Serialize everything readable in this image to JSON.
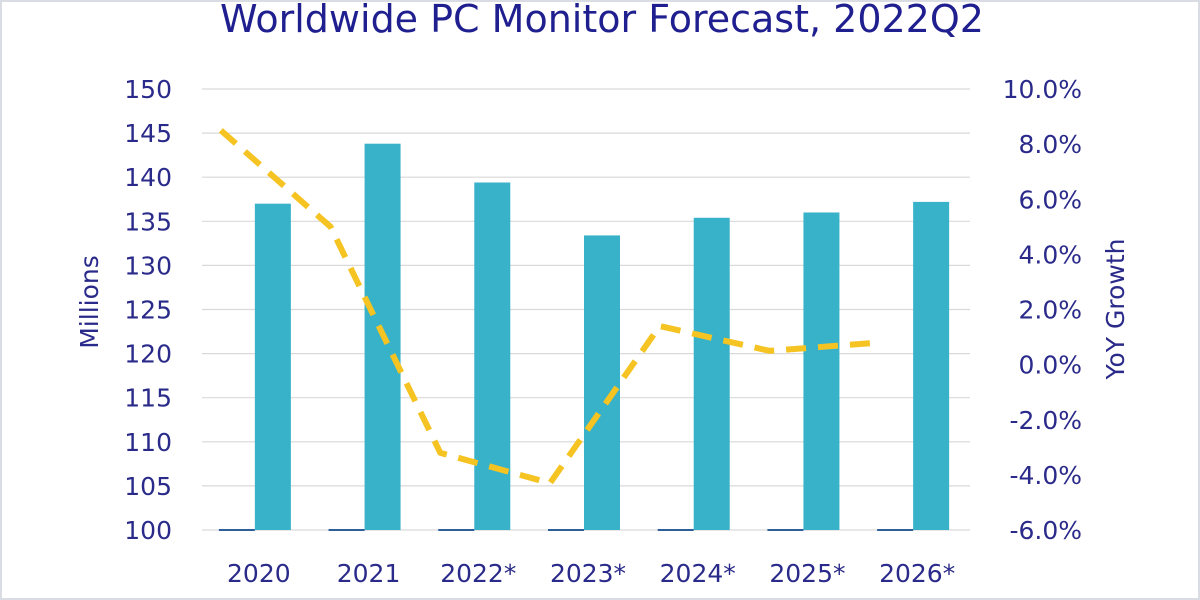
{
  "chart_data": {
    "type": "bar",
    "title": "Worldwide PC Monitor Forecast, 2022Q2",
    "categories": [
      "2020",
      "2021",
      "2022*",
      "2023*",
      "2024*",
      "2025*",
      "2026*"
    ],
    "series": [
      {
        "type": "bar",
        "values": [
          137.0,
          143.8,
          139.4,
          133.4,
          135.4,
          136.0,
          137.2
        ],
        "axis": "left",
        "color": "#38b2c8"
      },
      {
        "type": "line",
        "style": "dashed",
        "values": [
          8.5,
          5.0,
          -3.2,
          -4.3,
          1.4,
          0.5,
          0.8
        ],
        "axis": "right",
        "color": "#f5c322"
      }
    ],
    "ylabel": "Millions",
    "ylabel_right": "YoY Growth",
    "ylim": [
      100,
      150
    ],
    "ylim_right": [
      -6.0,
      10.0
    ],
    "yticks": [
      "100",
      "105",
      "110",
      "115",
      "120",
      "125",
      "130",
      "135",
      "140",
      "145",
      "150"
    ],
    "yticks_right": [
      "-6.0%",
      "-4.0%",
      "-2.0%",
      "0.0%",
      "2.0%",
      "4.0%",
      "6.0%",
      "8.0%",
      "10.0%"
    ],
    "grid": true,
    "legend": "none"
  }
}
